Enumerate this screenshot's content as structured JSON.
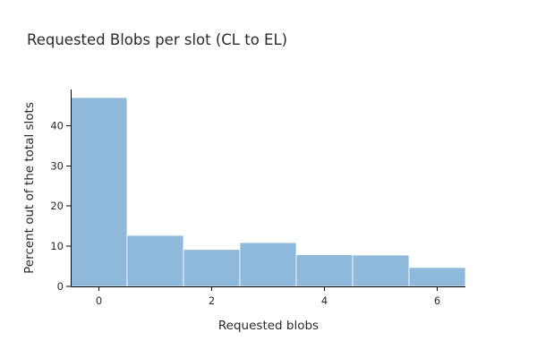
{
  "chart_data": {
    "type": "bar",
    "title": "Requested Blobs per slot (CL to EL)",
    "xlabel": "Requested blobs",
    "ylabel": "Percent out of the total slots",
    "categories": [
      0,
      1,
      2,
      3,
      4,
      5,
      6
    ],
    "values": [
      47.0,
      12.7,
      9.2,
      10.9,
      7.9,
      7.8,
      4.7
    ],
    "xlim": [
      -0.5,
      6.5
    ],
    "ylim": [
      0,
      49
    ],
    "xticks": [
      0,
      2,
      4,
      6
    ],
    "yticks": [
      0,
      10,
      20,
      30,
      40
    ],
    "bar_color": "#8fb9da",
    "grid": false,
    "legend": "none"
  }
}
